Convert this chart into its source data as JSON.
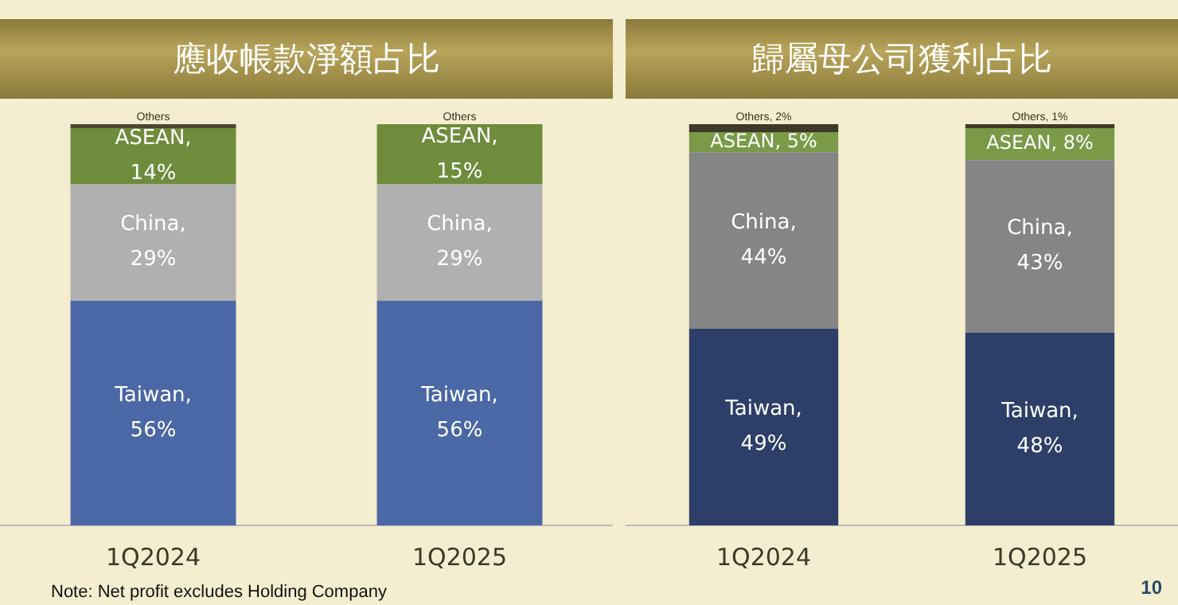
{
  "chart_data": [
    {
      "type": "bar",
      "title": "應收帳款淨額占比",
      "categories": [
        "1Q2024",
        "1Q2025"
      ],
      "stacked": true,
      "ylim": [
        0,
        100
      ],
      "tick_labels": "x",
      "grid": false,
      "series": [
        {
          "name": "Taiwan,",
          "color": "#4a67a6",
          "values": [
            56,
            56
          ],
          "value_labels": [
            "56%",
            "56%"
          ]
        },
        {
          "name": "China,",
          "color": "#b0b0b0",
          "values": [
            29,
            29
          ],
          "value_labels": [
            "29%",
            "29%"
          ]
        },
        {
          "name": "ASEAN,",
          "color": "#6e8c3c",
          "values": [
            14,
            15
          ],
          "value_labels": [
            "14%",
            "15%"
          ]
        },
        {
          "name": "Others",
          "color": "#4a4630",
          "values": [
            1,
            0
          ],
          "value_labels": [
            null,
            null
          ]
        }
      ]
    },
    {
      "type": "bar",
      "title": "歸屬母公司獲利占比",
      "categories": [
        "1Q2024",
        "1Q2025"
      ],
      "stacked": true,
      "ylim": [
        0,
        100
      ],
      "tick_labels": "x",
      "grid": false,
      "series": [
        {
          "name": "Taiwan,",
          "color": "#2d3f68",
          "values": [
            49,
            48
          ],
          "value_labels": [
            "49%",
            "48%"
          ]
        },
        {
          "name": "China,",
          "color": "#858585",
          "values": [
            44,
            43
          ],
          "value_labels": [
            "44%",
            "43%"
          ]
        },
        {
          "name": "ASEAN,",
          "color": "#7a9a48",
          "values": [
            5,
            8
          ],
          "value_labels": [
            "5%",
            "8%"
          ]
        },
        {
          "name": "Others,",
          "color": "#3d3a28",
          "values": [
            2,
            1
          ],
          "value_labels": [
            "2%",
            "1%"
          ]
        }
      ],
      "annotations": [
        "Note: Net profit excludes Holding Company",
        "10"
      ]
    }
  ]
}
